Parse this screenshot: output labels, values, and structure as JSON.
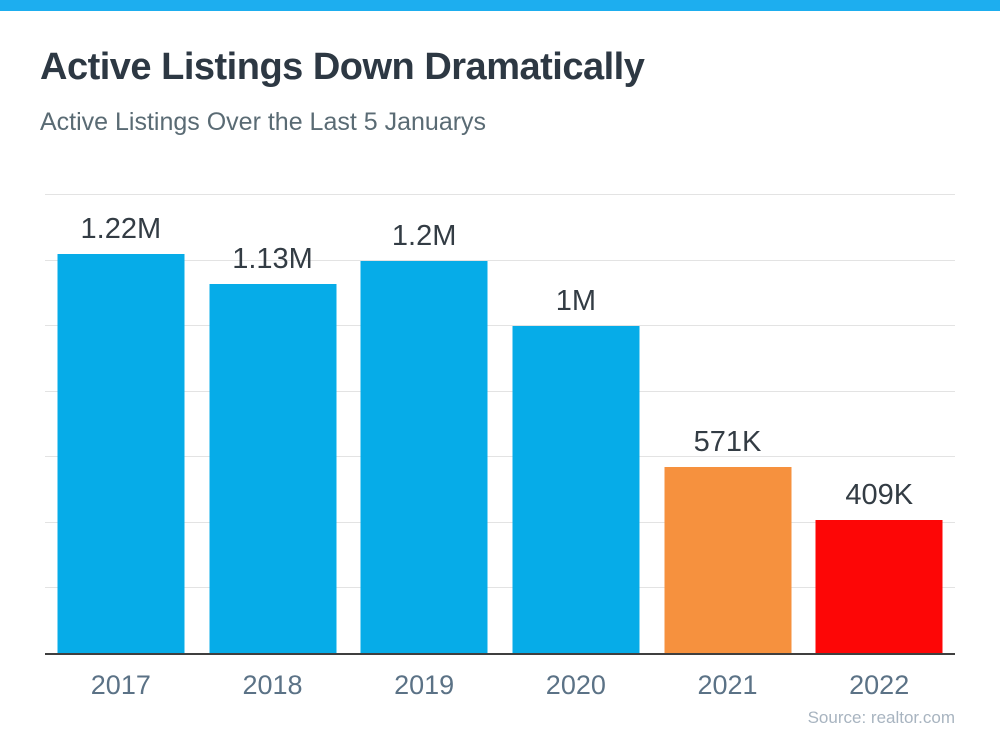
{
  "header": {
    "title": "Active Listings Down Dramatically",
    "subtitle": "Active Listings Over the Last 5 Januarys"
  },
  "source_credit": "Source: realtor.com",
  "colors": {
    "top_stripe": "#1daeef",
    "blue_bar": "#06ace8",
    "orange_bar": "#f6913e",
    "red_bar": "#fd0606",
    "gridline": "#e3e3e3",
    "baseline": "#3f3f3f",
    "title_text": "#2d3843",
    "subtitle_text": "#5a6b74",
    "value_label_text": "#333c44",
    "year_label_text": "#5b7286",
    "source_text": "#a8b4c0"
  },
  "chart_data": {
    "type": "bar",
    "title": "Active Listings Down Dramatically",
    "subtitle": "Active Listings Over the Last 5 Januarys",
    "categories": [
      "2017",
      "2018",
      "2019",
      "2020",
      "2021",
      "2022"
    ],
    "values": [
      1220000,
      1130000,
      1200000,
      1000000,
      571000,
      409000
    ],
    "value_labels": [
      "1.22M",
      "1.13M",
      "1.2M",
      "1M",
      "571K",
      "409K"
    ],
    "bar_colors": [
      "#06ace8",
      "#06ace8",
      "#06ace8",
      "#06ace8",
      "#f6913e",
      "#fd0606"
    ],
    "xlabel": "",
    "ylabel": "",
    "ylim": [
      0,
      1400000
    ],
    "gridline_step": 200000,
    "grid": true,
    "legend": false,
    "annotation": "Source: realtor.com"
  }
}
